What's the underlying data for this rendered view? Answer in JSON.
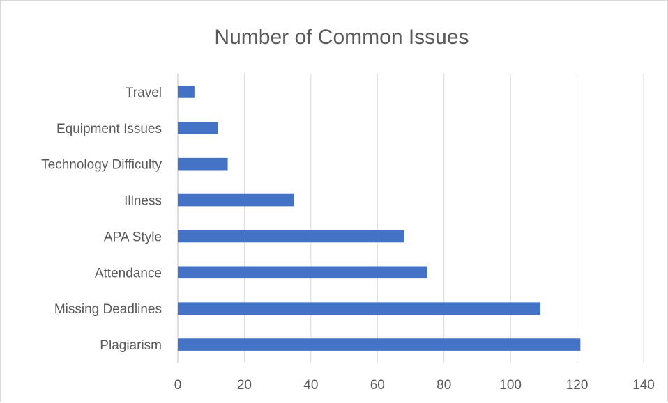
{
  "chart_data": {
    "type": "bar",
    "orientation": "horizontal",
    "title": "Number of Common Issues",
    "xlabel": "",
    "ylabel": "",
    "categories": [
      "Travel",
      "Equipment Issues",
      "Technology Difficulty",
      "Illness",
      "APA Style",
      "Attendance",
      "Missing Deadlines",
      "Plagiarism"
    ],
    "values": [
      5,
      12,
      15,
      35,
      68,
      75,
      109,
      121
    ],
    "xlim": [
      0,
      140
    ],
    "xticks": [
      0,
      20,
      40,
      60,
      80,
      100,
      120,
      140
    ],
    "grid": true,
    "legend": "none",
    "bar_color": "#4472C4"
  }
}
